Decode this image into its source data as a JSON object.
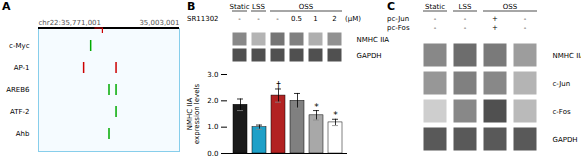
{
  "chart_data": [
    {
      "type": "tracks",
      "title": "A",
      "annotations": [
        "chr22:35,771,001",
        "35,003,001"
      ],
      "xlim": [
        0,
        1
      ],
      "tick_labels": "y",
      "highlight": {
        "x": 0.4,
        "color": "#CC0000"
      },
      "series": [
        {
          "name": "c-Myc",
          "color": "#00AA00",
          "values": [
            0.37
          ]
        },
        {
          "name": "AP-1",
          "color": "#CC0000",
          "values": [
            0.32,
            0.55
          ]
        },
        {
          "name": "AREB6",
          "color": "#00AA00",
          "values": [
            0.5,
            0.55
          ]
        },
        {
          "name": "ATF-2",
          "color": "#00AA00",
          "values": [
            0.55
          ]
        },
        {
          "name": "Ahb",
          "color": "#00AA00",
          "values": [
            0.5
          ]
        }
      ]
    },
    {
      "type": "blot",
      "title": "B",
      "groups": [
        "Static",
        "LSS",
        "OSS",
        null,
        null,
        null
      ],
      "conditions": [
        {
          "name": "SR11302",
          "values": [
            "-",
            "-",
            "-",
            "0.5",
            "1",
            "2"
          ],
          "unit": "(μM)"
        }
      ],
      "categories": [
        "NMHC IIA",
        "GAPDH"
      ],
      "values": [
        [
          0.55,
          0.4,
          0.62,
          0.58,
          0.42,
          0.52
        ],
        [
          0.75,
          0.75,
          0.75,
          0.75,
          0.75,
          0.75
        ]
      ]
    },
    {
      "type": "bar",
      "categories": [
        null,
        null,
        null,
        null,
        null,
        null
      ],
      "values": [
        1.85,
        1.0,
        2.2,
        2.0,
        1.45,
        1.18
      ],
      "errors": [
        0.22,
        0.08,
        0.25,
        0.28,
        0.18,
        0.12
      ],
      "colors": [
        "#1a1a1a",
        "#1EA0C8",
        "#B22222",
        "#808080",
        "#A8A8A8",
        "#FFFFFF"
      ],
      "annotations": [
        null,
        null,
        "†",
        null,
        "*",
        "*"
      ],
      "ylabel": "NMHC IIA\nexpression levels",
      "ylim": [
        0,
        3
      ],
      "yticks": [
        {
          "value": 0,
          "label": "0.0"
        },
        {
          "value": 1,
          "label": "1.0"
        },
        {
          "value": 2,
          "label": "2.0"
        },
        {
          "value": 3,
          "label": "3.0"
        }
      ],
      "tick_labels": "y"
    },
    {
      "type": "blot",
      "title": "C",
      "groups": [
        "Static",
        "LSS",
        "OSS",
        null
      ],
      "conditions": [
        {
          "name": "pc-Jun",
          "values": [
            "-",
            "-",
            "+",
            "-"
          ]
        },
        {
          "name": "pc-Fos",
          "values": [
            "-",
            "-",
            "+",
            "-"
          ]
        }
      ],
      "categories": [
        "NMHC IIA",
        "c-Jun",
        "c-Fos",
        "GAPDH"
      ],
      "values": [
        [
          0.55,
          0.65,
          0.6,
          0.48
        ],
        [
          0.5,
          0.58,
          0.55,
          0.4
        ],
        [
          0.3,
          0.55,
          0.75,
          0.38
        ],
        [
          0.72,
          0.72,
          0.72,
          0.72
        ]
      ]
    }
  ]
}
